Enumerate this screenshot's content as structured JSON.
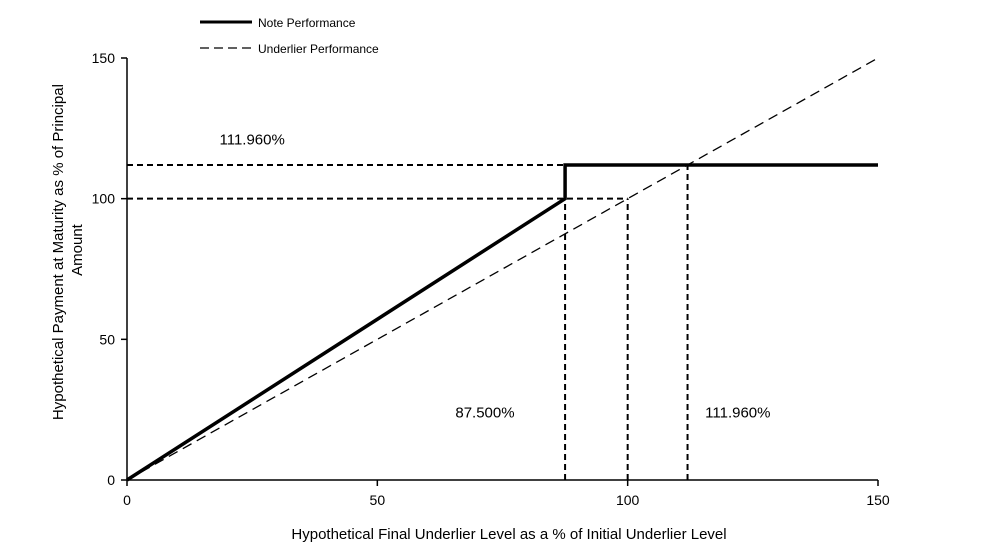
{
  "chart_data": {
    "type": "line",
    "title": "",
    "xlabel": "Hypothetical Final Underlier Level as a % of Initial Underlier Level",
    "ylabel_lines": [
      "Hypothetical Payment at Maturity as % of Principal",
      "Amount"
    ],
    "xlim": [
      0,
      150
    ],
    "ylim": [
      0,
      150
    ],
    "xticks": [
      0,
      50,
      100,
      150
    ],
    "yticks": [
      0,
      50,
      100,
      150
    ],
    "grid": false,
    "legend_position": "top-left",
    "series": [
      {
        "name": "Note Performance",
        "style": "solid-thick",
        "color": "#000000",
        "points": [
          [
            0,
            0
          ],
          [
            87.5,
            100
          ],
          [
            87.5,
            111.96
          ],
          [
            150,
            111.96
          ]
        ]
      },
      {
        "name": "Underlier Performance",
        "style": "dashed",
        "color": "#000000",
        "points": [
          [
            0,
            0
          ],
          [
            150,
            150
          ]
        ]
      }
    ],
    "reference_lines": [
      {
        "points": [
          [
            0,
            111.96
          ],
          [
            87.5,
            111.96
          ]
        ]
      },
      {
        "points": [
          [
            0,
            100
          ],
          [
            100,
            100
          ]
        ]
      },
      {
        "points": [
          [
            87.5,
            0
          ],
          [
            87.5,
            100
          ]
        ]
      },
      {
        "points": [
          [
            100,
            0
          ],
          [
            100,
            100
          ]
        ]
      },
      {
        "points": [
          [
            111.96,
            0
          ],
          [
            111.96,
            111.96
          ]
        ]
      }
    ],
    "annotations": [
      {
        "text": "111.960%",
        "x": 25,
        "y": 121
      },
      {
        "text": "87.500%",
        "x": 71.5,
        "y": 24
      },
      {
        "text": "111.960%",
        "x": 122,
        "y": 24
      }
    ]
  }
}
